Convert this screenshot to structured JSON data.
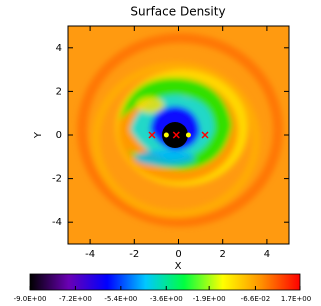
{
  "chart_data": {
    "type": "image",
    "title": "Surface Density",
    "xlabel": "X",
    "ylabel": "Y",
    "xlim": [
      -5,
      5
    ],
    "ylim": [
      -5,
      5
    ],
    "xticks": [
      -4,
      -2,
      0,
      2,
      4
    ],
    "yticks": [
      -4,
      -2,
      0,
      2,
      4
    ],
    "markers": [
      {
        "color": "#ff0000",
        "x": [
          -1.2,
          -0.1,
          1.2
        ],
        "y": [
          0,
          0,
          0
        ]
      },
      {
        "color": "#ffff00",
        "x": [
          -0.55,
          0.45
        ],
        "y": [
          0,
          0
        ]
      }
    ],
    "colormap": [
      "#000000",
      "#6a00b4",
      "#0000ff",
      "#00c8ff",
      "#00ff40",
      "#ffff00",
      "#ff9000",
      "#ff0000"
    ],
    "colorbar": {
      "lim": [
        -9.0,
        1.7
      ],
      "ticks": [
        {
          "value": -9.0,
          "label": "-9.0E+00"
        },
        {
          "value": -7.2,
          "label": "-7.2E+00"
        },
        {
          "value": -5.4,
          "label": "-5.4E+00"
        },
        {
          "value": -3.6,
          "label": "-3.6E+00"
        },
        {
          "value": -1.9,
          "label": "-1.9E+00"
        },
        {
          "value": -0.066,
          "label": "-6.6E-02"
        },
        {
          "value": 1.7,
          "label": "1.7E+00"
        }
      ]
    }
  }
}
